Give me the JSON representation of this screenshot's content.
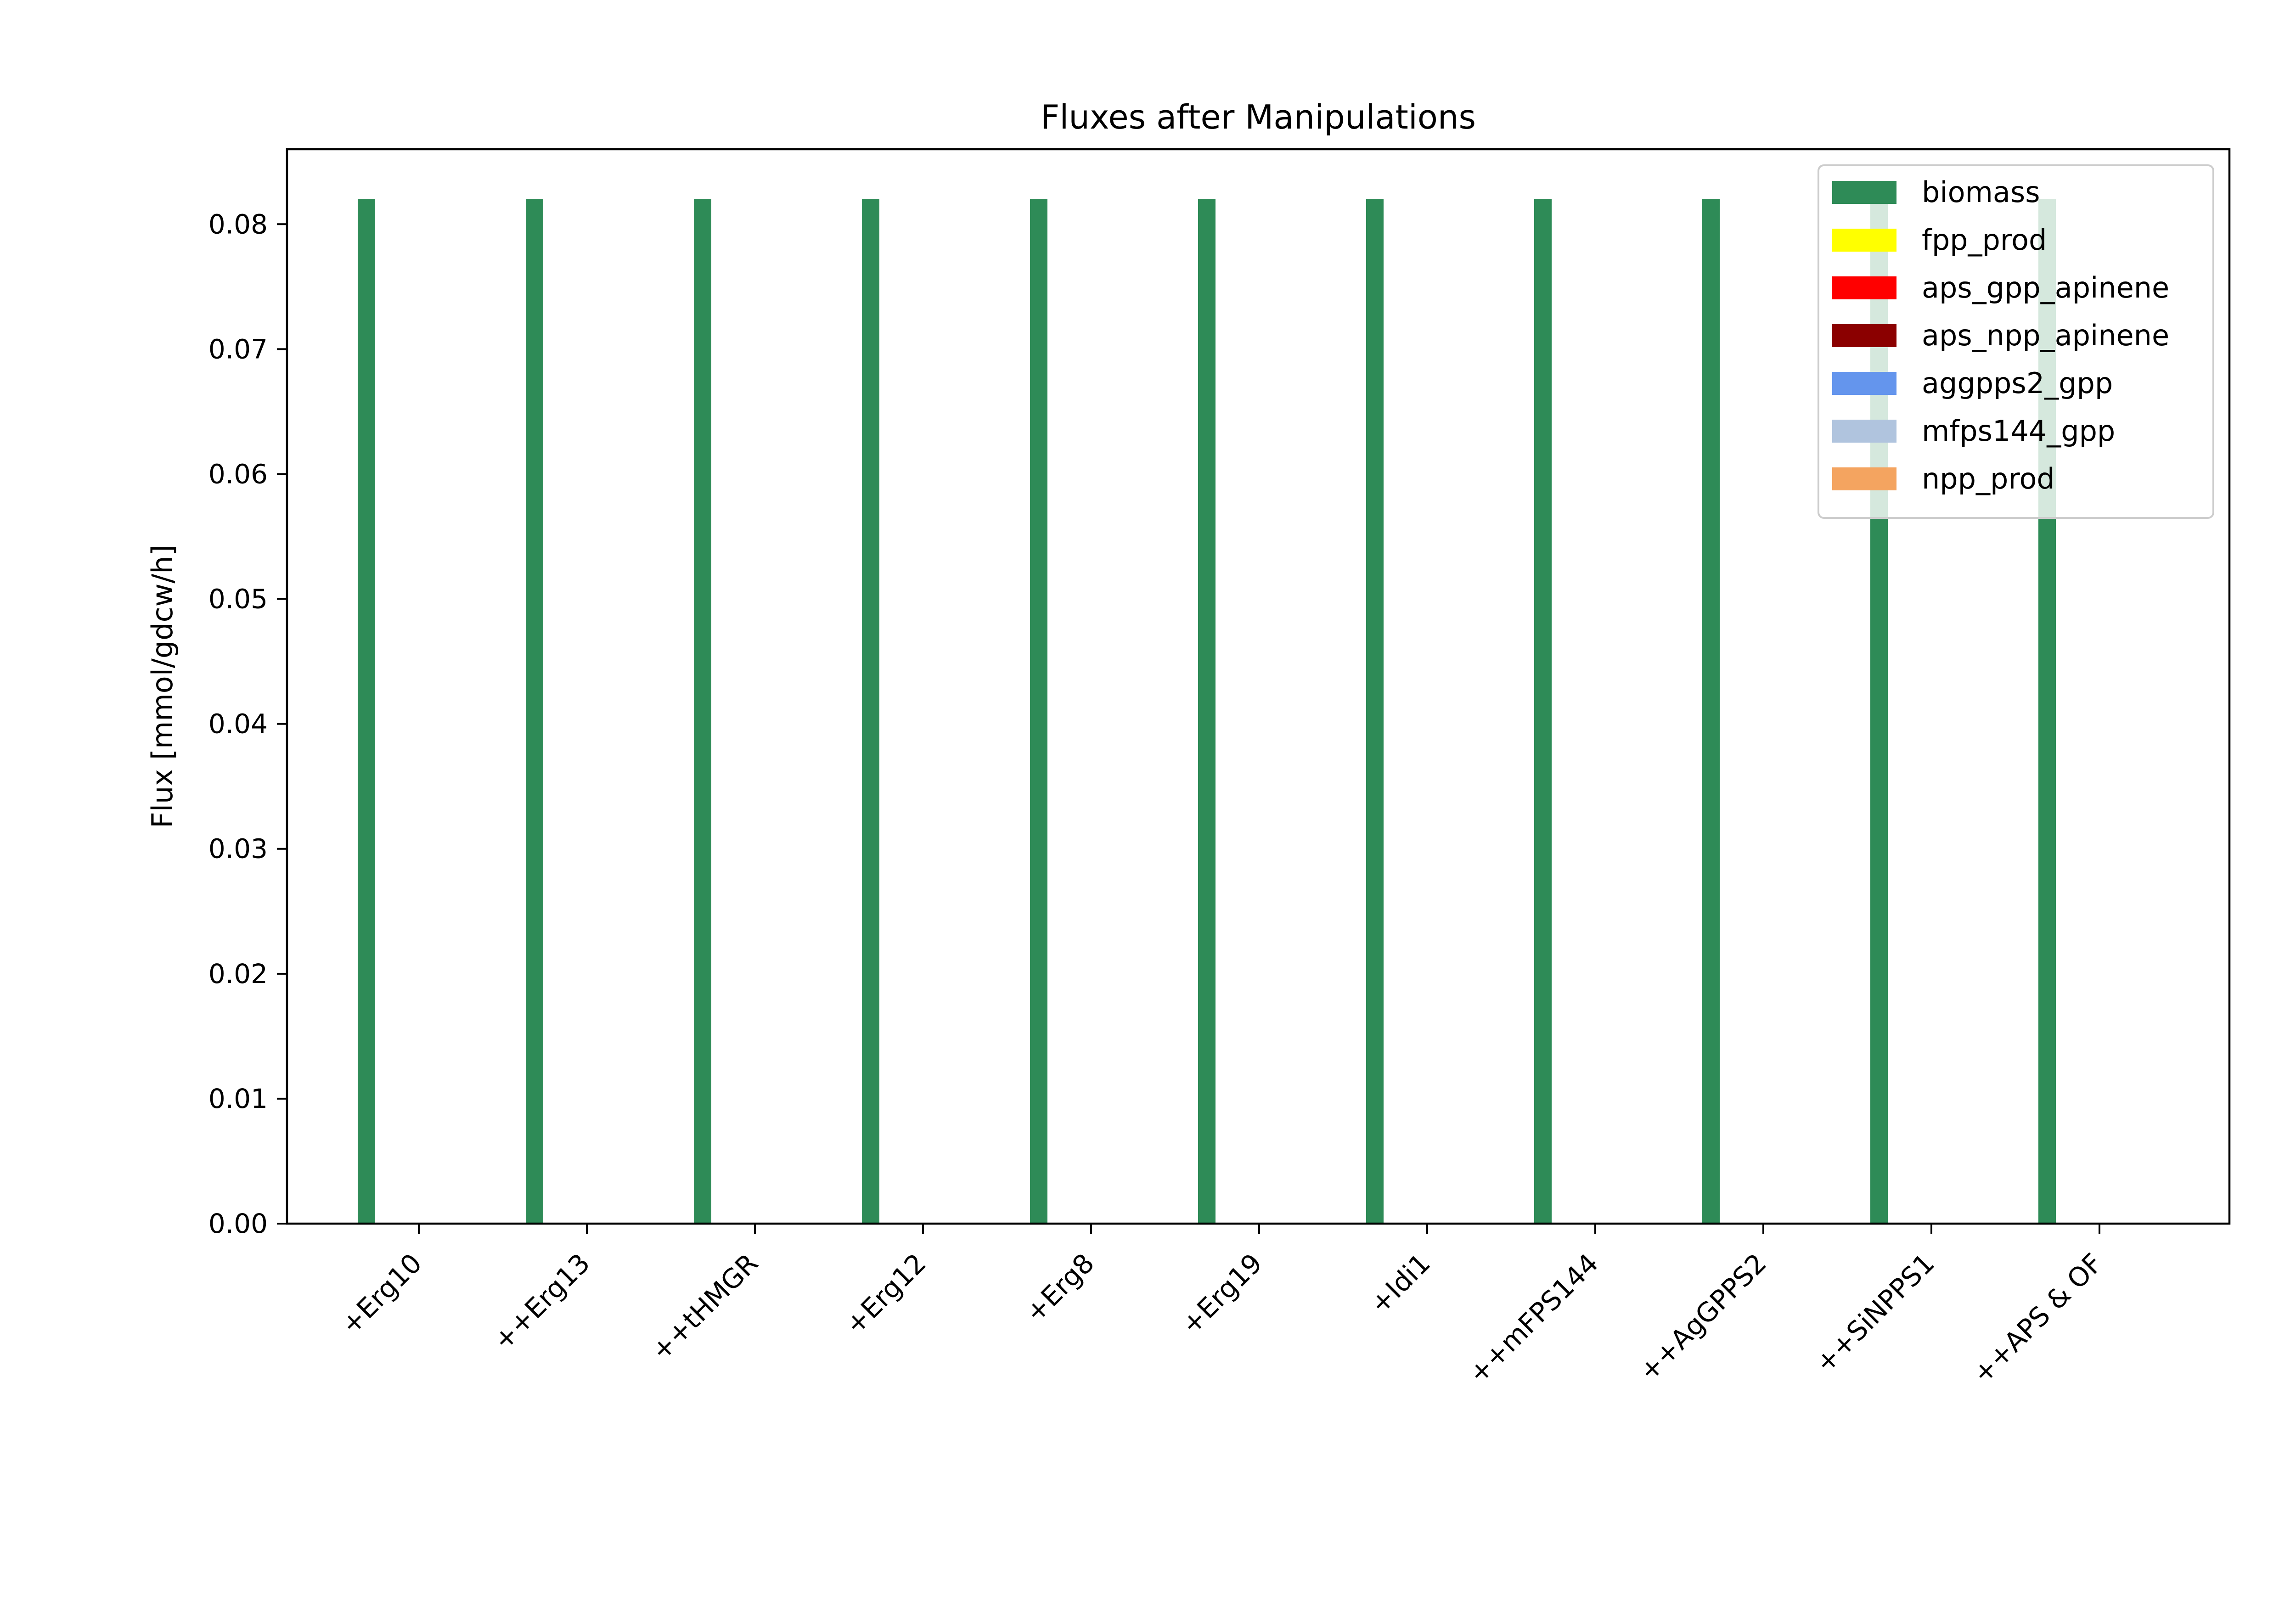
{
  "chart_data": {
    "type": "bar",
    "title": "Fluxes after Manipulations",
    "xlabel": "",
    "ylabel": "Flux [mmol/gdcw/h]",
    "ylim": [
      0,
      0.086
    ],
    "yticks": [
      "0.00",
      "0.01",
      "0.02",
      "0.03",
      "0.04",
      "0.05",
      "0.06",
      "0.07",
      "0.08"
    ],
    "ytick_values": [
      0,
      0.01,
      0.02,
      0.03,
      0.04,
      0.05,
      0.06,
      0.07,
      0.08
    ],
    "categories": [
      "+Erg10",
      "++Erg13",
      "++tHMGR",
      "+Erg12",
      "+Erg8",
      "+Erg19",
      "+Idi1",
      "++mFPS144",
      "++AgGPPS2",
      "++SiNPPS1",
      "++APS & OF"
    ],
    "legend_position": "upper right",
    "grid": false,
    "series": [
      {
        "name": "biomass",
        "color": "#2e8b57",
        "values": [
          0.082,
          0.082,
          0.082,
          0.082,
          0.082,
          0.082,
          0.082,
          0.082,
          0.082,
          0.082,
          0.082
        ]
      },
      {
        "name": "fpp_prod",
        "color": "#ffff00",
        "values": [
          0,
          0,
          0,
          0,
          0,
          0,
          0,
          0,
          0,
          0,
          0
        ]
      },
      {
        "name": "aps_gpp_apinene",
        "color": "#ff0000",
        "values": [
          0,
          0,
          0,
          0,
          0,
          0,
          0,
          0,
          0,
          0,
          0
        ]
      },
      {
        "name": "aps_npp_apinene",
        "color": "#8b0000",
        "values": [
          0,
          0,
          0,
          0,
          0,
          0,
          0,
          0,
          0,
          0,
          0
        ]
      },
      {
        "name": "aggpps2_gpp",
        "color": "#6495ed",
        "values": [
          0,
          0,
          0,
          0,
          0,
          0,
          0,
          0,
          0,
          0,
          0
        ]
      },
      {
        "name": "mfps144_gpp",
        "color": "#b0c4de",
        "values": [
          0,
          0,
          0,
          0,
          0,
          0,
          0,
          0,
          0,
          0,
          0
        ]
      },
      {
        "name": "npp_prod",
        "color": "#f4a460",
        "values": [
          0,
          0,
          0,
          0,
          0,
          0,
          0,
          0,
          0,
          0,
          0
        ]
      }
    ]
  }
}
